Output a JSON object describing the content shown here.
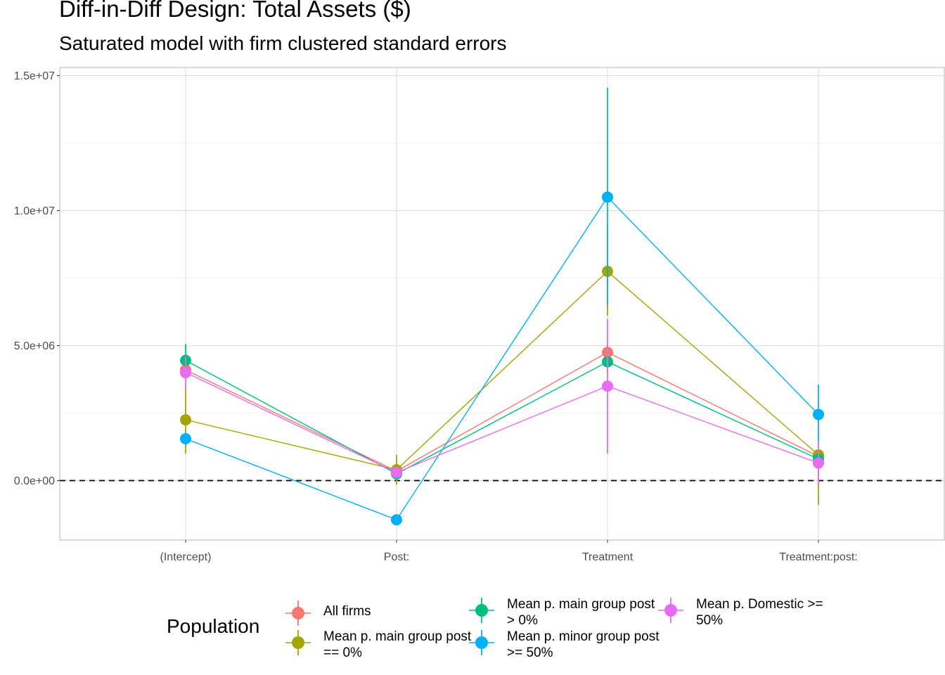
{
  "chart_data": {
    "type": "scatter",
    "title": "Diff-in-Diff Design: Total Assets ($)",
    "subtitle": "Saturated model with firm clustered standard errors",
    "xlabel": "",
    "ylabel": "",
    "categories": [
      "(Intercept)",
      "Post:",
      "Treatment",
      "Treatment:post:"
    ],
    "y_ticks": [
      {
        "value": 0,
        "label": "0.0e+00"
      },
      {
        "value": 5000000,
        "label": "5.0e+06"
      },
      {
        "value": 10000000,
        "label": "1.0e+07"
      },
      {
        "value": 15000000,
        "label": "1.5e+07"
      }
    ],
    "ylim": [
      -2200000,
      15300000
    ],
    "reference_line": {
      "y": 0,
      "style": "dashed"
    },
    "grid": true,
    "legend": {
      "title": "Population",
      "position": "bottom"
    },
    "series": [
      {
        "name": "All firms",
        "color": "#F8766D",
        "values": [
          4100000,
          350000,
          4750000,
          900000
        ],
        "lower": [
          3750000,
          100000,
          4400000,
          700000
        ],
        "upper": [
          4450000,
          600000,
          5100000,
          1100000
        ]
      },
      {
        "name": "Mean p. main group post == 0%",
        "color": "#A3A500",
        "values": [
          2250000,
          400000,
          7750000,
          950000
        ],
        "lower": [
          1000000,
          -150000,
          6100000,
          -900000
        ],
        "upper": [
          3500000,
          950000,
          9400000,
          1000000
        ]
      },
      {
        "name": "Mean p. main group post > 0%",
        "color": "#00BF7D",
        "values": [
          4450000,
          250000,
          4400000,
          800000
        ],
        "lower": [
          3800000,
          50000,
          4000000,
          600000
        ],
        "upper": [
          5050000,
          450000,
          4800000,
          1000000
        ]
      },
      {
        "name": "Mean p. minor group post >= 50%",
        "color": "#00B0F6",
        "values": [
          1550000,
          -1450000,
          10500000,
          2450000
        ],
        "lower": [
          1300000,
          -1600000,
          6500000,
          1400000
        ],
        "upper": [
          1800000,
          -1300000,
          14550000,
          3550000
        ]
      },
      {
        "name": "Mean p. Domestic >= 50%",
        "color": "#E76BF3",
        "values": [
          4000000,
          300000,
          3500000,
          650000
        ],
        "lower": [
          3400000,
          150000,
          1000000,
          -200000
        ],
        "upper": [
          4600000,
          450000,
          6000000,
          1450000
        ]
      }
    ]
  }
}
